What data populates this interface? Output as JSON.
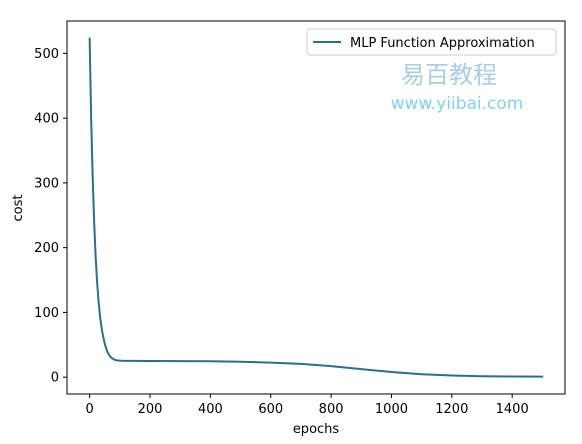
{
  "chart_data": {
    "type": "line",
    "title": "",
    "xlabel": "epochs",
    "ylabel": "cost",
    "xlim": [
      -75,
      1575
    ],
    "ylim": [
      -26,
      550
    ],
    "xticks": [
      0,
      200,
      400,
      600,
      800,
      1000,
      1200,
      1400
    ],
    "yticks": [
      0,
      100,
      200,
      300,
      400,
      500
    ],
    "xtick_labels": [
      "0",
      "200",
      "400",
      "600",
      "800",
      "1000",
      "1200",
      "1400"
    ],
    "ytick_labels": [
      "0",
      "100",
      "200",
      "300",
      "400",
      "500"
    ],
    "grid": false,
    "legend_position": "top-right",
    "series": [
      {
        "name": "MLP Function Approximation",
        "color": "#2a6f8c",
        "x": [
          0,
          5,
          10,
          15,
          20,
          25,
          30,
          35,
          40,
          45,
          50,
          55,
          60,
          65,
          70,
          75,
          80,
          85,
          90,
          95,
          100,
          110,
          120,
          150,
          200,
          300,
          400,
          500,
          600,
          700,
          800,
          900,
          1000,
          1100,
          1200,
          1300,
          1400,
          1500
        ],
        "y": [
          523,
          400,
          310,
          240,
          185,
          145,
          115,
          92,
          75,
          62,
          52,
          44,
          38,
          34,
          31,
          29,
          27.5,
          26.5,
          26,
          25.7,
          25.5,
          25.3,
          25.2,
          25.1,
          25,
          24.8,
          24.5,
          23.8,
          22.5,
          20.5,
          17,
          12.5,
          8,
          4.5,
          2.5,
          1.5,
          1,
          0.8
        ]
      }
    ]
  },
  "watermark": {
    "title": "易百教程",
    "url": "www.yiibai.com",
    "title_color": "#a9cde3",
    "url_color": "#7fd3ee"
  }
}
